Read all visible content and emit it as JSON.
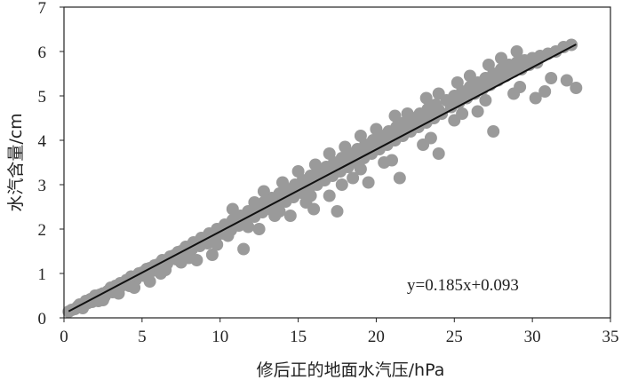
{
  "chart_data": {
    "type": "scatter",
    "title": "",
    "xlabel": "修后正的地面水汽压/hPa",
    "ylabel": "水汽含量/cm",
    "xlim": [
      0,
      35
    ],
    "ylim": [
      0,
      7
    ],
    "x_ticks": [
      "0",
      "5",
      "10",
      "15",
      "20",
      "25",
      "30",
      "35"
    ],
    "y_ticks": [
      "0",
      "1",
      "2",
      "3",
      "4",
      "5",
      "6",
      "7"
    ],
    "grid": false,
    "legend": "none",
    "marker_color": "#9a9a9a",
    "line_color": "#111111",
    "fit": {
      "slope": 0.185,
      "intercept": 0.093,
      "x_range": [
        0.3,
        32.8
      ],
      "label": "y=0.185x+0.093"
    },
    "series": [
      {
        "name": "",
        "points": [
          [
            0.3,
            0.14
          ],
          [
            0.5,
            0.18
          ],
          [
            0.7,
            0.2
          ],
          [
            0.9,
            0.26
          ],
          [
            1.0,
            0.3
          ],
          [
            1.2,
            0.28
          ],
          [
            1.4,
            0.38
          ],
          [
            1.5,
            0.33
          ],
          [
            1.7,
            0.42
          ],
          [
            1.8,
            0.36
          ],
          [
            2.0,
            0.5
          ],
          [
            2.1,
            0.44
          ],
          [
            2.3,
            0.52
          ],
          [
            2.5,
            0.55
          ],
          [
            2.6,
            0.48
          ],
          [
            2.8,
            0.6
          ],
          [
            3.0,
            0.68
          ],
          [
            3.1,
            0.58
          ],
          [
            3.3,
            0.72
          ],
          [
            3.5,
            0.7
          ],
          [
            3.6,
            0.78
          ],
          [
            3.8,
            0.74
          ],
          [
            4.0,
            0.85
          ],
          [
            4.1,
            0.8
          ],
          [
            4.3,
            0.93
          ],
          [
            4.5,
            0.9
          ],
          [
            4.6,
            0.86
          ],
          [
            4.8,
            1.0
          ],
          [
            5.0,
            1.02
          ],
          [
            5.1,
            0.95
          ],
          [
            5.3,
            1.1
          ],
          [
            5.5,
            1.12
          ],
          [
            5.6,
            1.05
          ],
          [
            5.8,
            1.18
          ],
          [
            6.0,
            1.2
          ],
          [
            6.1,
            1.14
          ],
          [
            6.3,
            1.3
          ],
          [
            6.5,
            1.28
          ],
          [
            6.6,
            1.22
          ],
          [
            6.8,
            1.38
          ],
          [
            7.0,
            1.4
          ],
          [
            7.2,
            1.32
          ],
          [
            7.3,
            1.48
          ],
          [
            7.5,
            1.5
          ],
          [
            7.7,
            1.42
          ],
          [
            7.8,
            1.6
          ],
          [
            8.0,
            1.58
          ],
          [
            8.2,
            1.55
          ],
          [
            8.3,
            1.7
          ],
          [
            8.5,
            1.65
          ],
          [
            8.7,
            1.62
          ],
          [
            8.8,
            1.8
          ],
          [
            9.0,
            1.75
          ],
          [
            9.2,
            1.68
          ],
          [
            9.3,
            1.9
          ],
          [
            9.5,
            1.85
          ],
          [
            9.7,
            1.8
          ],
          [
            9.8,
            2.0
          ],
          [
            10.0,
            1.95
          ],
          [
            10.2,
            1.9
          ],
          [
            10.3,
            2.1
          ],
          [
            10.5,
            2.05
          ],
          [
            10.7,
            1.98
          ],
          [
            10.8,
            2.2
          ],
          [
            11.0,
            2.15
          ],
          [
            11.2,
            2.08
          ],
          [
            11.3,
            2.3
          ],
          [
            11.5,
            2.25
          ],
          [
            11.7,
            2.2
          ],
          [
            11.8,
            2.4
          ],
          [
            12.0,
            2.35
          ],
          [
            12.2,
            2.28
          ],
          [
            12.3,
            2.5
          ],
          [
            12.5,
            2.42
          ],
          [
            12.7,
            2.38
          ],
          [
            12.8,
            2.6
          ],
          [
            13.0,
            2.5
          ],
          [
            13.2,
            2.45
          ],
          [
            13.3,
            2.7
          ],
          [
            13.5,
            2.6
          ],
          [
            13.7,
            2.55
          ],
          [
            13.8,
            2.8
          ],
          [
            14.0,
            2.7
          ],
          [
            14.2,
            2.62
          ],
          [
            14.3,
            2.9
          ],
          [
            14.5,
            2.8
          ],
          [
            14.7,
            2.72
          ],
          [
            14.8,
            3.0
          ],
          [
            15.0,
            2.9
          ],
          [
            15.2,
            2.82
          ],
          [
            15.3,
            3.1
          ],
          [
            15.5,
            3.0
          ],
          [
            15.7,
            2.92
          ],
          [
            15.8,
            3.2
          ],
          [
            16.0,
            3.1
          ],
          [
            16.2,
            3.0
          ],
          [
            16.3,
            3.3
          ],
          [
            16.5,
            3.18
          ],
          [
            16.7,
            3.1
          ],
          [
            16.8,
            3.4
          ],
          [
            17.0,
            3.28
          ],
          [
            17.2,
            3.2
          ],
          [
            17.3,
            3.5
          ],
          [
            17.5,
            3.38
          ],
          [
            17.7,
            3.3
          ],
          [
            17.8,
            3.6
          ],
          [
            18.0,
            3.48
          ],
          [
            18.2,
            3.4
          ],
          [
            18.3,
            3.7
          ],
          [
            18.5,
            3.58
          ],
          [
            18.7,
            3.5
          ],
          [
            18.8,
            3.8
          ],
          [
            19.0,
            3.68
          ],
          [
            19.2,
            3.6
          ],
          [
            19.3,
            3.9
          ],
          [
            19.5,
            3.78
          ],
          [
            19.7,
            3.7
          ],
          [
            19.8,
            4.0
          ],
          [
            20.0,
            3.88
          ],
          [
            20.2,
            3.8
          ],
          [
            20.3,
            4.1
          ],
          [
            20.5,
            3.98
          ],
          [
            20.7,
            3.9
          ],
          [
            20.8,
            4.2
          ],
          [
            21.0,
            4.08
          ],
          [
            21.2,
            4.0
          ],
          [
            21.3,
            4.3
          ],
          [
            21.5,
            4.18
          ],
          [
            21.7,
            4.1
          ],
          [
            21.8,
            4.4
          ],
          [
            22.0,
            4.28
          ],
          [
            22.2,
            4.2
          ],
          [
            22.3,
            4.5
          ],
          [
            22.5,
            4.38
          ],
          [
            22.7,
            4.3
          ],
          [
            22.8,
            4.6
          ],
          [
            23.0,
            4.48
          ],
          [
            23.2,
            4.4
          ],
          [
            23.3,
            4.7
          ],
          [
            23.5,
            4.58
          ],
          [
            23.7,
            4.5
          ],
          [
            23.8,
            4.8
          ],
          [
            24.0,
            4.68
          ],
          [
            24.2,
            4.6
          ],
          [
            24.5,
            4.9
          ],
          [
            24.8,
            4.75
          ],
          [
            25.0,
            5.0
          ],
          [
            25.3,
            4.85
          ],
          [
            25.5,
            5.1
          ],
          [
            25.8,
            4.95
          ],
          [
            26.0,
            5.2
          ],
          [
            26.3,
            5.05
          ],
          [
            26.5,
            5.3
          ],
          [
            26.8,
            5.15
          ],
          [
            27.0,
            5.4
          ],
          [
            27.3,
            5.25
          ],
          [
            27.5,
            5.5
          ],
          [
            27.8,
            5.35
          ],
          [
            28.0,
            5.6
          ],
          [
            28.3,
            5.45
          ],
          [
            28.5,
            5.7
          ],
          [
            28.8,
            5.55
          ],
          [
            29.0,
            5.75
          ],
          [
            29.3,
            5.6
          ],
          [
            29.5,
            5.8
          ],
          [
            29.8,
            5.7
          ],
          [
            30.0,
            5.85
          ],
          [
            30.3,
            5.75
          ],
          [
            30.5,
            5.9
          ],
          [
            31.0,
            5.95
          ],
          [
            31.5,
            6.0
          ],
          [
            32.0,
            6.1
          ],
          [
            32.5,
            6.15
          ],
          [
            32.8,
            5.18
          ],
          [
            30.2,
            4.95
          ],
          [
            28.8,
            5.05
          ],
          [
            27.5,
            4.2
          ],
          [
            26.5,
            4.65
          ],
          [
            25.5,
            4.6
          ],
          [
            24.0,
            3.7
          ],
          [
            23.0,
            3.9
          ],
          [
            21.5,
            3.15
          ],
          [
            20.5,
            3.5
          ],
          [
            19.5,
            3.05
          ],
          [
            18.5,
            3.15
          ],
          [
            17.5,
            2.4
          ],
          [
            17.0,
            2.75
          ],
          [
            16.0,
            2.45
          ],
          [
            15.5,
            2.6
          ],
          [
            14.5,
            2.3
          ],
          [
            13.5,
            2.3
          ],
          [
            12.5,
            2.0
          ],
          [
            11.5,
            1.55
          ],
          [
            10.5,
            1.85
          ],
          [
            9.5,
            1.42
          ],
          [
            8.5,
            1.3
          ],
          [
            7.5,
            1.25
          ],
          [
            6.5,
            1.08
          ],
          [
            5.5,
            0.82
          ],
          [
            4.5,
            0.68
          ],
          [
            3.5,
            0.55
          ],
          [
            2.5,
            0.4
          ],
          [
            12.2,
            2.6
          ],
          [
            14.0,
            3.05
          ],
          [
            16.1,
            3.45
          ],
          [
            18.0,
            3.85
          ],
          [
            20.0,
            4.25
          ],
          [
            22.0,
            4.6
          ],
          [
            24.0,
            5.05
          ],
          [
            26.0,
            5.45
          ],
          [
            28.0,
            5.85
          ],
          [
            29.2,
            5.2
          ],
          [
            31.2,
            5.4
          ],
          [
            32.2,
            5.35
          ],
          [
            30.8,
            5.1
          ],
          [
            27.0,
            4.9
          ],
          [
            25.0,
            4.45
          ],
          [
            23.5,
            4.05
          ],
          [
            21.0,
            3.55
          ],
          [
            19.0,
            3.35
          ],
          [
            17.8,
            3.0
          ],
          [
            15.8,
            2.75
          ],
          [
            13.8,
            2.4
          ],
          [
            11.8,
            2.05
          ],
          [
            9.8,
            1.65
          ],
          [
            8.0,
            1.35
          ],
          [
            6.2,
            1.0
          ],
          [
            4.2,
            0.72
          ],
          [
            2.2,
            0.38
          ],
          [
            1.2,
            0.22
          ],
          [
            10.8,
            2.45
          ],
          [
            12.8,
            2.85
          ],
          [
            15.0,
            3.3
          ],
          [
            17.0,
            3.7
          ],
          [
            19.0,
            4.1
          ],
          [
            21.2,
            4.55
          ],
          [
            23.2,
            4.95
          ],
          [
            25.2,
            5.3
          ],
          [
            27.2,
            5.7
          ],
          [
            29.0,
            6.0
          ]
        ]
      }
    ]
  }
}
